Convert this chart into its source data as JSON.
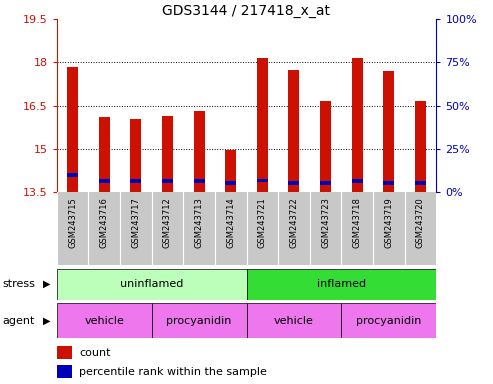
{
  "title": "GDS3144 / 217418_x_at",
  "samples": [
    "GSM243715",
    "GSM243716",
    "GSM243717",
    "GSM243712",
    "GSM243713",
    "GSM243714",
    "GSM243721",
    "GSM243722",
    "GSM243723",
    "GSM243718",
    "GSM243719",
    "GSM243720"
  ],
  "bar_values": [
    17.85,
    16.1,
    16.05,
    16.15,
    16.3,
    14.95,
    18.15,
    17.75,
    16.65,
    18.15,
    17.7,
    16.65
  ],
  "percentile_pos": [
    14.08,
    13.88,
    13.87,
    13.87,
    13.88,
    13.82,
    13.9,
    13.82,
    13.82,
    13.87,
    13.82,
    13.82
  ],
  "ymin": 13.5,
  "ymax": 19.5,
  "yticks_left": [
    13.5,
    15.0,
    16.5,
    18.0,
    19.5
  ],
  "yticks_right_pct": [
    0,
    25,
    50,
    75,
    100
  ],
  "bar_color": "#CC1100",
  "percentile_color": "#0000BB",
  "bg_color": "#C8C8C8",
  "stress_uninflamed_color": "#BBFFBB",
  "stress_inflamed_color": "#33DD33",
  "agent_color": "#EE77EE",
  "legend_count": "count",
  "legend_percentile": "percentile rank within the sample",
  "stress_groups": [
    {
      "label": "uninflamed",
      "start": 0,
      "end": 6,
      "color": "#BBFFBB"
    },
    {
      "label": "inflamed",
      "start": 6,
      "end": 12,
      "color": "#33DD33"
    }
  ],
  "agent_groups": [
    {
      "label": "vehicle",
      "start": 0,
      "end": 3
    },
    {
      "label": "procyanidin",
      "start": 3,
      "end": 6
    },
    {
      "label": "vehicle",
      "start": 6,
      "end": 9
    },
    {
      "label": "procyanidin",
      "start": 9,
      "end": 12
    }
  ],
  "bar_width": 0.35,
  "pct_bar_height": 0.13
}
